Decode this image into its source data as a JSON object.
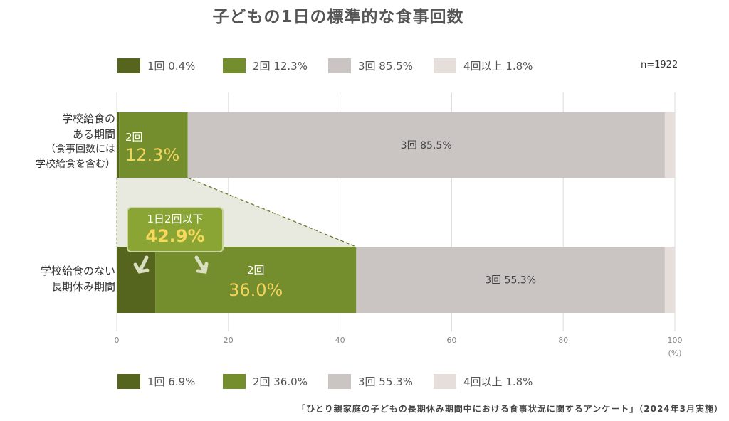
{
  "chart_data": {
    "type": "bar",
    "orientation": "horizontal-stacked",
    "title": "子どもの1日の標準的な食事回数",
    "n_label": "n=1922",
    "xlim": [
      0,
      100
    ],
    "xticks": [
      "0",
      "20",
      "40",
      "60",
      "80",
      "100"
    ],
    "xunit": "(%)",
    "segments": [
      "1回",
      "2回",
      "3回",
      "4回以上"
    ],
    "colors": [
      "#56651d",
      "#748d2d",
      "#cac5c2",
      "#e5dedb"
    ],
    "rows": [
      {
        "label": "学校給食の",
        "label2": "ある期間",
        "sub1": "（食事回数には",
        "sub2": "学校給食を含む）",
        "values": [
          0.4,
          12.3,
          85.5,
          1.8
        ],
        "legend": [
          "1回 0.4%",
          "2回 12.3%",
          "3回 85.5%",
          "4回以上 1.8%"
        ],
        "seg2_label": "2回",
        "seg2_value": "12.3%",
        "seg3_label": "3回 85.5%"
      },
      {
        "label": "学校給食のない",
        "label2": "長期休み期間",
        "values": [
          6.9,
          36.0,
          55.3,
          1.8
        ],
        "legend": [
          "1回 6.9%",
          "2回 36.0%",
          "3回 55.3%",
          "4回以上 1.8%"
        ],
        "seg2_label": "2回",
        "seg2_value": "36.0%",
        "seg3_label": "3回 55.3%"
      }
    ],
    "callout": {
      "label": "1日2回以下",
      "value": "42.9%"
    },
    "grid": true
  },
  "source": "「ひとり親家庭の子どもの長期休み期間中における食事状況に関するアンケート」（2024年3月実施）"
}
